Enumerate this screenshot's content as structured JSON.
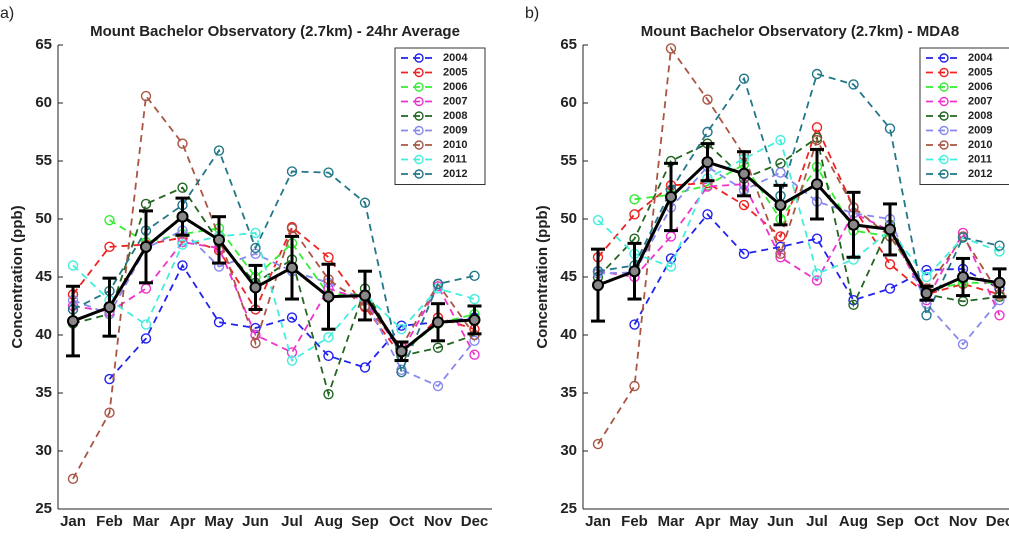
{
  "chart_data": [
    {
      "type": "line",
      "label": "a)",
      "title": "Mount Bachelor Observatory (2.7km) - 24hr Average",
      "y_label": "Concentration (ppb)",
      "categories": [
        "Jan",
        "Feb",
        "Mar",
        "Apr",
        "May",
        "Jun",
        "Jul",
        "Aug",
        "Sep",
        "Oct",
        "Nov",
        "Dec"
      ],
      "ylim": [
        25,
        65
      ],
      "yticks": [
        25,
        30,
        35,
        40,
        45,
        50,
        55,
        60,
        65
      ],
      "grid": false,
      "legend": "upper right",
      "series": [
        {
          "name": "2004",
          "color": "#2222ee",
          "values": [
            null,
            36.2,
            39.7,
            46.0,
            41.1,
            40.6,
            41.5,
            38.2,
            37.2,
            40.8,
            41.1,
            41.5
          ]
        },
        {
          "name": "2005",
          "color": "#ee2222",
          "values": [
            43.5,
            47.6,
            47.8,
            48.4,
            47.3,
            42.2,
            49.3,
            46.7,
            42.4,
            38.2,
            41.5,
            40.5
          ]
        },
        {
          "name": "2006",
          "color": "#33ee33",
          "values": [
            null,
            49.9,
            48.0,
            48.7,
            49.2,
            45.0,
            47.9,
            43.5,
            43.5,
            38.5,
            41.0,
            41.8
          ]
        },
        {
          "name": "2007",
          "color": "#ee33cc",
          "values": [
            42.5,
            42.0,
            44.0,
            48.0,
            47.5,
            40.0,
            38.5,
            44.0,
            43.0,
            38.5,
            44.2,
            38.3
          ]
        },
        {
          "name": "2008",
          "color": "#226622",
          "values": [
            41.0,
            41.8,
            51.3,
            52.7,
            48.0,
            44.5,
            46.5,
            34.9,
            44.0,
            38.2,
            38.9,
            40.0
          ]
        },
        {
          "name": "2009",
          "color": "#8888ee",
          "values": [
            43.0,
            41.8,
            47.5,
            49.0,
            45.9,
            47.0,
            45.5,
            44.5,
            43.0,
            37.0,
            35.6,
            39.5
          ]
        },
        {
          "name": "2010",
          "color": "#aa5544",
          "values": [
            27.6,
            33.3,
            60.6,
            56.5,
            48.5,
            39.3,
            49.2,
            44.8,
            42.5,
            39.0,
            44.4,
            40.0
          ]
        },
        {
          "name": "2011",
          "color": "#44eedd",
          "values": [
            46.0,
            43.0,
            40.9,
            47.8,
            48.5,
            48.8,
            37.8,
            39.8,
            43.5,
            40.5,
            44.0,
            43.1
          ]
        },
        {
          "name": "2012",
          "color": "#227788",
          "values": [
            42.2,
            43.8,
            49.0,
            51.2,
            55.9,
            47.5,
            54.1,
            54.0,
            51.4,
            36.8,
            44.4,
            45.1
          ]
        }
      ],
      "mean": {
        "color": "#000000",
        "values": [
          41.2,
          42.4,
          47.6,
          50.2,
          48.2,
          44.1,
          45.8,
          43.3,
          43.4,
          38.6,
          41.1,
          41.3
        ],
        "errors": [
          3.0,
          2.5,
          3.1,
          1.6,
          2.0,
          1.9,
          2.7,
          2.8,
          2.1,
          0.8,
          1.6,
          1.2
        ]
      }
    },
    {
      "type": "line",
      "label": "b)",
      "title": "Mount Bachelor Observatory (2.7km) - MDA8",
      "y_label": "Concentration (ppb)",
      "categories": [
        "Jan",
        "Feb",
        "Mar",
        "Apr",
        "May",
        "Jun",
        "Jul",
        "Aug",
        "Sep",
        "Oct",
        "Nov",
        "Dec"
      ],
      "ylim": [
        25,
        65
      ],
      "yticks": [
        25,
        30,
        35,
        40,
        45,
        50,
        55,
        60,
        65
      ],
      "grid": false,
      "legend": "upper right",
      "series": [
        {
          "name": "2004",
          "color": "#2222ee",
          "values": [
            null,
            40.9,
            46.6,
            50.4,
            47.0,
            47.6,
            48.3,
            43.0,
            44.0,
            45.6,
            45.7,
            44.0
          ]
        },
        {
          "name": "2005",
          "color": "#ee2222",
          "values": [
            46.7,
            50.4,
            52.9,
            53.1,
            51.2,
            48.5,
            57.9,
            51.0,
            46.1,
            43.5,
            44.4,
            43.5
          ]
        },
        {
          "name": "2006",
          "color": "#33ee33",
          "values": [
            null,
            51.7,
            52.1,
            52.9,
            54.7,
            50.0,
            54.5,
            49.0,
            48.5,
            43.8,
            44.5,
            44.5
          ]
        },
        {
          "name": "2007",
          "color": "#ee33cc",
          "values": [
            45.5,
            45.0,
            48.5,
            52.8,
            53.0,
            46.7,
            44.7,
            50.5,
            49.0,
            43.0,
            48.8,
            41.7
          ]
        },
        {
          "name": "2008",
          "color": "#226622",
          "values": [
            45.0,
            48.3,
            55.0,
            56.5,
            53.5,
            54.8,
            57.0,
            42.6,
            49.5,
            43.5,
            42.9,
            43.3
          ]
        },
        {
          "name": "2009",
          "color": "#8888ee",
          "values": [
            45.3,
            45.4,
            51.0,
            54.5,
            52.5,
            54.0,
            51.5,
            50.5,
            50.0,
            42.7,
            39.2,
            43.0
          ]
        },
        {
          "name": "2010",
          "color": "#aa5544",
          "values": [
            30.6,
            35.6,
            64.7,
            60.3,
            55.5,
            47.0,
            56.8,
            51.0,
            48.5,
            44.0,
            48.5,
            43.5
          ]
        },
        {
          "name": "2011",
          "color": "#44eedd",
          "values": [
            49.9,
            47.0,
            45.9,
            53.5,
            55.2,
            56.8,
            45.3,
            46.5,
            49.0,
            45.0,
            48.4,
            47.2
          ]
        },
        {
          "name": "2012",
          "color": "#227788",
          "values": [
            45.5,
            46.0,
            52.5,
            57.5,
            62.1,
            52.0,
            62.5,
            61.6,
            57.8,
            41.7,
            48.4,
            47.7
          ]
        }
      ],
      "mean": {
        "color": "#000000",
        "values": [
          44.3,
          45.5,
          51.9,
          54.9,
          53.9,
          51.2,
          53.0,
          49.5,
          49.1,
          43.6,
          45.0,
          44.5
        ],
        "errors": [
          3.1,
          2.4,
          2.9,
          1.6,
          1.9,
          1.7,
          3.0,
          2.8,
          2.2,
          0.6,
          1.6,
          1.2
        ]
      }
    }
  ]
}
